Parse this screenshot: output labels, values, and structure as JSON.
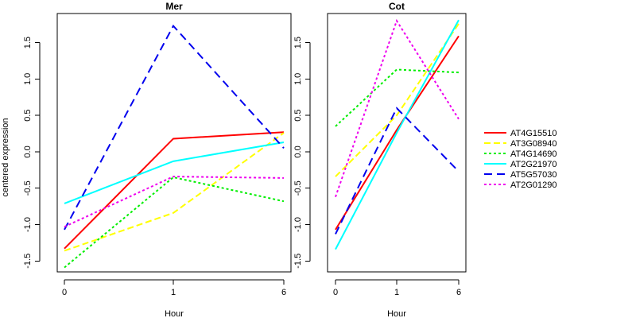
{
  "chart_data": {
    "type": "line",
    "ylabel": "centered expression",
    "legend_position": "right",
    "panels": [
      {
        "title": "Mer",
        "xlabel": "Hour",
        "x": [
          "0",
          "1",
          "6"
        ],
        "ylim": [
          -1.65,
          1.9
        ],
        "yticks": [
          -1.5,
          -1.0,
          -0.5,
          0.0,
          0.5,
          1.0,
          1.5
        ],
        "ytick_labels": [
          "-1.5",
          "-1.0",
          "-0.5",
          "0.0",
          "0.5",
          "1.0",
          "1.5"
        ],
        "series": [
          {
            "name": "AT4G15510",
            "values": [
              -1.33,
              0.18,
              0.27
            ]
          },
          {
            "name": "AT3G08940",
            "values": [
              -1.36,
              -0.84,
              0.26
            ]
          },
          {
            "name": "AT4G14690",
            "values": [
              -1.59,
              -0.35,
              -0.68
            ]
          },
          {
            "name": "AT2G21970",
            "values": [
              -0.71,
              -0.13,
              0.13
            ]
          },
          {
            "name": "AT5G57030",
            "values": [
              -1.07,
              1.73,
              0.05
            ]
          },
          {
            "name": "AT2G01290",
            "values": [
              -1.03,
              -0.34,
              -0.36
            ]
          }
        ]
      },
      {
        "title": "Cot",
        "xlabel": "Hour",
        "x": [
          "0",
          "1",
          "6"
        ],
        "ylim": [
          -1.65,
          1.9
        ],
        "yticks": [
          -1.5,
          -1.0,
          -0.5,
          0.0,
          0.5,
          1.0,
          1.5
        ],
        "ytick_labels": [
          "-1.5",
          "-1.0",
          "-0.5",
          "0.0",
          "0.5",
          "1.0",
          "1.5"
        ],
        "series": [
          {
            "name": "AT4G15510",
            "values": [
              -1.07,
              0.3,
              1.59
            ]
          },
          {
            "name": "AT3G08940",
            "values": [
              -0.34,
              0.5,
              1.76
            ]
          },
          {
            "name": "AT4G14690",
            "values": [
              0.35,
              1.13,
              1.09
            ]
          },
          {
            "name": "AT2G21970",
            "values": [
              -1.34,
              0.26,
              1.81
            ]
          },
          {
            "name": "AT5G57030",
            "values": [
              -1.13,
              0.6,
              -0.27
            ]
          },
          {
            "name": "AT2G01290",
            "values": [
              -0.62,
              1.8,
              0.45
            ]
          }
        ]
      }
    ],
    "legend": [
      {
        "name": "AT4G15510",
        "color": "#ff0000",
        "dash": "solid"
      },
      {
        "name": "AT3G08940",
        "color": "#ffff00",
        "dash": "dashed"
      },
      {
        "name": "AT4G14690",
        "color": "#00ee00",
        "dash": "dotted"
      },
      {
        "name": "AT2G21970",
        "color": "#00ffff",
        "dash": "solid"
      },
      {
        "name": "AT5G57030",
        "color": "#0000ee",
        "dash": "long-dashed"
      },
      {
        "name": "AT2G01290",
        "color": "#ee00ee",
        "dash": "dotted"
      }
    ]
  }
}
